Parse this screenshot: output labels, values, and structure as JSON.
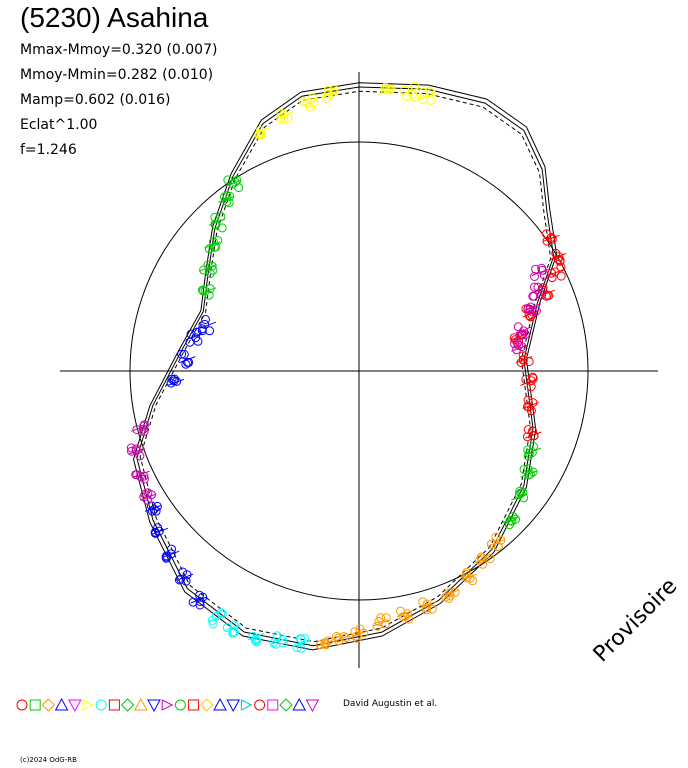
{
  "header": {
    "title": "(5230) Asahina",
    "params": [
      "Mmax-Mmoy=0.320 (0.007)",
      "Mmoy-Mmin=0.282 (0.010)",
      "Mamp=0.602 (0.016)",
      "Eclat^1.00",
      "f=1.246"
    ]
  },
  "watermark": "Provisoire",
  "credit": "David Augustin et al.",
  "copyright": "(c)2024 OdG-RB",
  "chart_data": {
    "type": "scatter",
    "description_of_axes": "polar lightcurve plot; angle = rotational phase, radius = brightness",
    "reference_circle_radius": 1.0,
    "grid": false,
    "marker_colors": [
      "#ff0000",
      "#00cc00",
      "#ff9900",
      "#0000ff",
      "#ff00ff",
      "#ffff00",
      "#00ffff",
      "#ff0000",
      "#00cc00",
      "#ff9900",
      "#0000ff",
      "#cc00cc",
      "#00cc00",
      "#ff0000",
      "#ffcc00",
      "#0000ff",
      "#0000ff",
      "#00cccc",
      "#ff0000",
      "#ff00ff",
      "#00cc00",
      "#0000ff",
      "#cc00cc"
    ],
    "series": [
      {
        "color": "#ff0000",
        "points": [
          [
            0.84,
            0.58
          ],
          [
            0.87,
            0.5
          ],
          [
            0.86,
            0.43
          ],
          [
            0.82,
            0.34
          ],
          [
            0.75,
            0.25
          ],
          [
            0.7,
            0.15
          ],
          [
            0.72,
            0.05
          ],
          [
            0.74,
            -0.05
          ],
          [
            0.75,
            -0.15
          ],
          [
            0.76,
            -0.28
          ]
        ]
      },
      {
        "color": "#cc00aa",
        "points": [
          [
            0.79,
            0.43
          ],
          [
            0.78,
            0.35
          ],
          [
            0.76,
            0.28
          ],
          [
            0.72,
            0.18
          ],
          [
            0.7,
            0.1
          ]
        ]
      },
      {
        "color": "#00cc00",
        "points": [
          [
            0.76,
            -0.35
          ],
          [
            0.74,
            -0.45
          ],
          [
            0.7,
            -0.55
          ],
          [
            0.66,
            -0.65
          ]
        ]
      },
      {
        "color": "#ff9900",
        "points": [
          [
            0.6,
            -0.75
          ],
          [
            0.55,
            -0.82
          ],
          [
            0.48,
            -0.9
          ],
          [
            0.4,
            -0.97
          ],
          [
            0.3,
            -1.02
          ],
          [
            0.2,
            -1.06
          ],
          [
            0.1,
            -1.1
          ],
          [
            0.0,
            -1.15
          ],
          [
            -0.08,
            -1.17
          ],
          [
            -0.15,
            -1.19
          ]
        ]
      },
      {
        "color": "#00ffff",
        "points": [
          [
            -0.25,
            -1.19
          ],
          [
            -0.35,
            -1.18
          ],
          [
            -0.45,
            -1.16
          ],
          [
            -0.55,
            -1.12
          ],
          [
            -0.62,
            -1.08
          ]
        ]
      },
      {
        "color": "#0000ff",
        "points": [
          [
            -0.7,
            -1.0
          ],
          [
            -0.76,
            -0.9
          ],
          [
            -0.82,
            -0.8
          ],
          [
            -0.87,
            -0.7
          ],
          [
            -0.9,
            -0.6
          ]
        ]
      },
      {
        "color": "#cc00aa",
        "points": [
          [
            -0.92,
            -0.55
          ],
          [
            -0.95,
            -0.45
          ],
          [
            -0.97,
            -0.35
          ],
          [
            -0.96,
            -0.25
          ]
        ]
      },
      {
        "color": "#0000ff",
        "points": [
          [
            -0.8,
            -0.05
          ],
          [
            -0.75,
            0.05
          ],
          [
            -0.72,
            0.15
          ],
          [
            -0.66,
            0.2
          ]
        ]
      },
      {
        "color": "#00cc00",
        "points": [
          [
            -0.66,
            0.35
          ],
          [
            -0.66,
            0.45
          ],
          [
            -0.64,
            0.55
          ],
          [
            -0.62,
            0.65
          ],
          [
            -0.58,
            0.75
          ],
          [
            -0.55,
            0.82
          ]
        ]
      },
      {
        "color": "#ffff00",
        "points": [
          [
            -0.42,
            1.05
          ],
          [
            -0.32,
            1.12
          ],
          [
            -0.22,
            1.17
          ],
          [
            -0.12,
            1.21
          ],
          [
            0.12,
            1.22
          ],
          [
            0.22,
            1.22
          ],
          [
            0.3,
            1.2
          ]
        ]
      }
    ],
    "fit_curve": "closed double-peaked curve around origin"
  }
}
